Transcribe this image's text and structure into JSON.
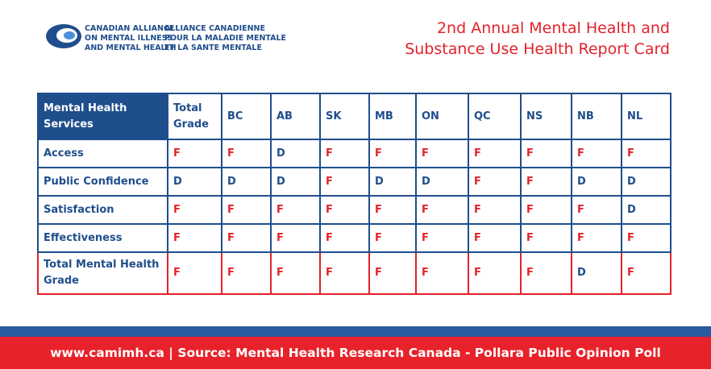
{
  "header": {
    "logo_en": [
      "CANADIAN ALLIANCE",
      "ON MENTAL ILLNESS",
      "AND MENTAL HEALTH"
    ],
    "logo_fr": [
      "ALLIANCE CANADIENNE",
      "POUR LA MALADIE MENTALE",
      "ET LA SANTE MENTALE"
    ],
    "title": [
      "2nd Annual Mental Health and",
      "Substance Use Health Report Card"
    ]
  },
  "table": {
    "columns": [
      "Mental Health Services",
      "Total Grade",
      "BC",
      "AB",
      "SK",
      "MB",
      "ON",
      "QC",
      "NS",
      "NB",
      "NL"
    ],
    "rows": [
      [
        "Access",
        "F",
        "F",
        "D",
        "F",
        "F",
        "F",
        "F",
        "F",
        "F",
        "F"
      ],
      [
        "Public Confidence",
        "D",
        "D",
        "D",
        "F",
        "D",
        "D",
        "F",
        "F",
        "D",
        "D"
      ],
      [
        "Satisfaction",
        "F",
        "F",
        "F",
        "F",
        "F",
        "F",
        "F",
        "F",
        "F",
        "D"
      ],
      [
        "Effectiveness",
        "F",
        "F",
        "F",
        "F",
        "F",
        "F",
        "F",
        "F",
        "F",
        "F"
      ],
      [
        "Total Mental Health Grade",
        "F",
        "F",
        "F",
        "F",
        "F",
        "F",
        "F",
        "F",
        "D",
        "F"
      ]
    ]
  },
  "footer": {
    "text": "www.camimh.ca | Source: Mental Health Research Canada - Pollara Public Opinion Poll"
  }
}
